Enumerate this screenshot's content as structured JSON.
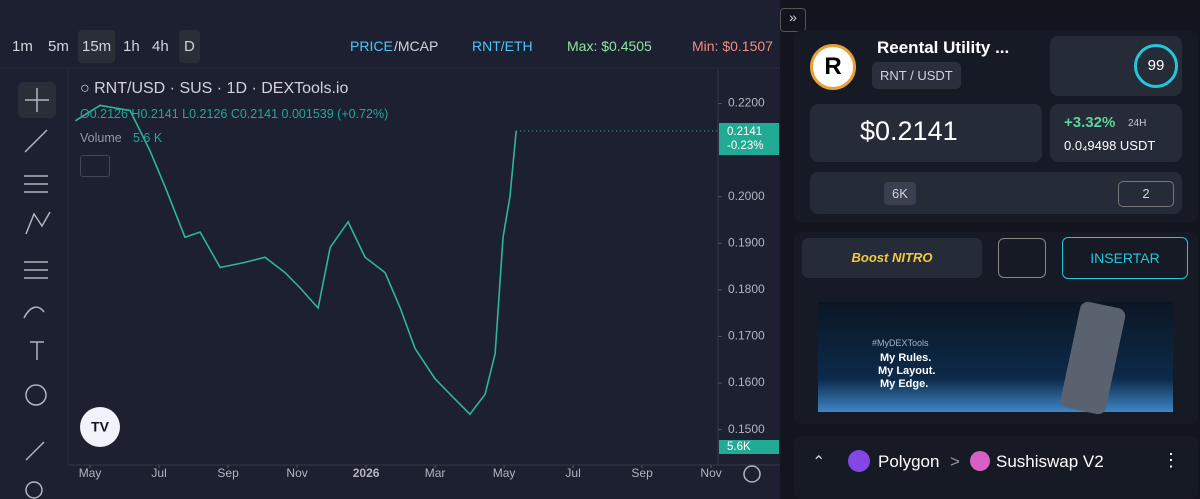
{
  "toolbar": {
    "timeframes": [
      "1m",
      "5m",
      "15m",
      "1h",
      "4h",
      "D"
    ],
    "price": "PRICE",
    "mcap": "/MCAP",
    "pair_alt": "RNT/ETH",
    "max": "Max: $0.4505",
    "min": "Min: $0.1507"
  },
  "legend": {
    "symbol": "RNT/USD · SUS · 1D · DEXTools.io",
    "ohlc": "O0.2126 H0.2141 L0.2126 C0.2141 0.001539 (+0.72%)",
    "volume_label": "Volume",
    "volume_value": "5.6 K",
    "price_tag": "0.2141",
    "change_tag": "-0.23%",
    "volume_tag": "5.6K"
  },
  "chart_data": {
    "type": "line",
    "series": [
      {
        "name": "RNT/USD",
        "color": "#2fb59a",
        "x": [
          -0.43,
          0.29,
          1.16,
          1.74,
          2.17,
          2.75,
          3.19,
          3.77,
          4.49,
          5.07,
          5.65,
          6.09,
          6.61,
          6.96,
          7.48,
          7.97,
          8.55,
          8.99,
          9.42,
          10.0,
          10.58,
          11.01,
          11.45,
          11.74,
          11.97,
          12.17,
          12.35
        ],
        "values": [
          0.2163,
          0.2196,
          0.2185,
          0.2098,
          0.2022,
          0.1913,
          0.1924,
          0.1848,
          0.1859,
          0.187,
          0.1837,
          0.1804,
          0.1761,
          0.1891,
          0.1946,
          0.187,
          0.1837,
          0.1761,
          0.1674,
          0.1609,
          0.1565,
          0.1533,
          0.1576,
          0.1663,
          0.1913,
          0.2,
          0.2141
        ]
      }
    ],
    "xlim": [
      -0.64,
      18.2
    ],
    "xticks": [
      {
        "value": 0,
        "label": "May"
      },
      {
        "value": 2,
        "label": "Jul"
      },
      {
        "value": 4,
        "label": "Sep"
      },
      {
        "value": 6,
        "label": "Nov"
      },
      {
        "value": 8,
        "label": "2026"
      },
      {
        "value": 10,
        "label": "Mar"
      },
      {
        "value": 12,
        "label": "May"
      },
      {
        "value": 14,
        "label": "Jul"
      },
      {
        "value": 16,
        "label": "Sep"
      },
      {
        "value": 18,
        "label": "Nov"
      }
    ],
    "ylim": [
      0.1424,
      0.2272
    ],
    "yticks": [
      {
        "value": 0.15,
        "label": "0.1500"
      },
      {
        "value": 0.16,
        "label": "0.1600"
      },
      {
        "value": 0.17,
        "label": "0.1700"
      },
      {
        "value": 0.18,
        "label": "0.1800"
      },
      {
        "value": 0.19,
        "label": "0.1900"
      },
      {
        "value": 0.2,
        "label": "0.2000"
      },
      {
        "value": 0.22,
        "label": "0.2200"
      }
    ]
  },
  "token": {
    "name": "Reental Utility ...",
    "pair": "RNT / USDT",
    "score": "99",
    "price": "$0.2141",
    "change": "+3.32%",
    "change_period": "24H",
    "quote": "0.0₄9498 USDT",
    "followers": "6K",
    "audits": "2"
  },
  "actions": {
    "boost": "Boost",
    "nitro": "NITRO",
    "embed": "INSERTAR"
  },
  "banner": {
    "tag": "#MyDEXTools",
    "line1": "My Rules.",
    "line2": "My Layout.",
    "line3": "My Edge."
  },
  "route": {
    "chain": "Polygon",
    "dex": "Sushiswap V2"
  }
}
